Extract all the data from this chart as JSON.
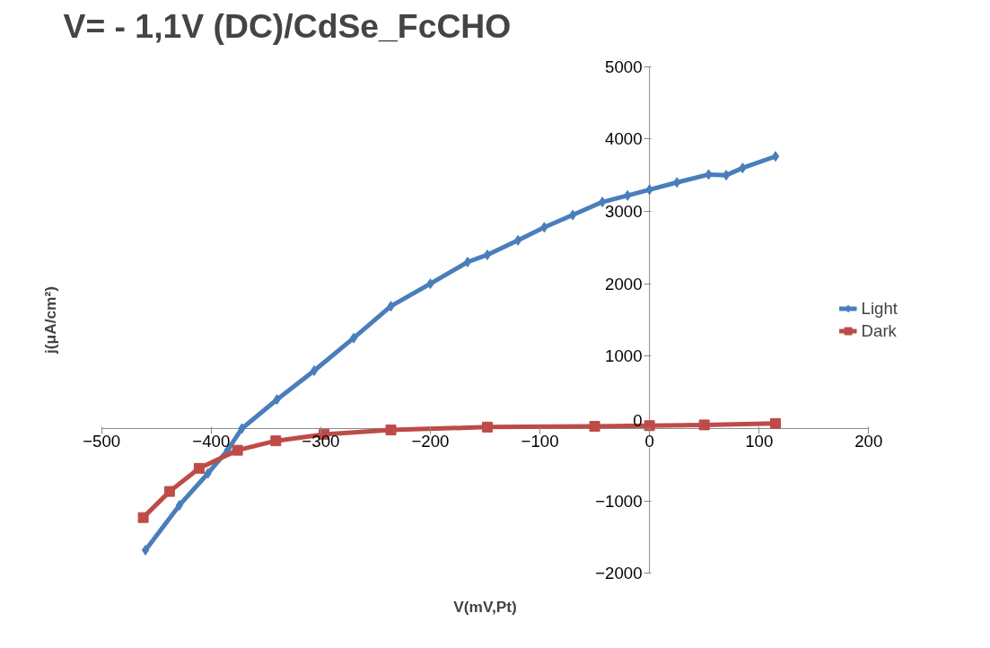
{
  "chart_data": {
    "type": "line",
    "title": "V= - 1,1V (DC)/CdSe_FcCHO",
    "xlabel": "V(mV,Pt)",
    "ylabel": "j(μA/cm²)",
    "xlim": [
      -500,
      200
    ],
    "xticks": [
      -500,
      -400,
      -300,
      -200,
      -100,
      0,
      100,
      200
    ],
    "ylim": [
      -2000,
      5000
    ],
    "yticks": [
      -2000,
      -1000,
      0,
      1000,
      2000,
      3000,
      4000,
      5000
    ],
    "grid": false,
    "legend": "right",
    "series": [
      {
        "name": "Light",
        "color": "#4a7ebb",
        "marker": "diamond",
        "x": [
          -460,
          -429,
          -403,
          -385,
          -372,
          -340,
          -306,
          -270,
          -236,
          -200,
          -166,
          -148,
          -120,
          -96,
          -70,
          -43,
          -20,
          0,
          25,
          54,
          70,
          85,
          115
        ],
        "values": [
          -1680,
          -1060,
          -620,
          -300,
          0,
          400,
          800,
          1250,
          1690,
          2000,
          2300,
          2400,
          2600,
          2780,
          2950,
          3130,
          3220,
          3300,
          3400,
          3510,
          3500,
          3600,
          3760
        ]
      },
      {
        "name": "Dark",
        "color": "#be4b48",
        "marker": "square",
        "x": [
          -462,
          -438,
          -411,
          -376,
          -341,
          -297,
          -236,
          -148,
          -50,
          0,
          50,
          115
        ],
        "values": [
          -1230,
          -870,
          -550,
          -300,
          -170,
          -80,
          -20,
          20,
          30,
          40,
          50,
          70
        ]
      }
    ]
  }
}
